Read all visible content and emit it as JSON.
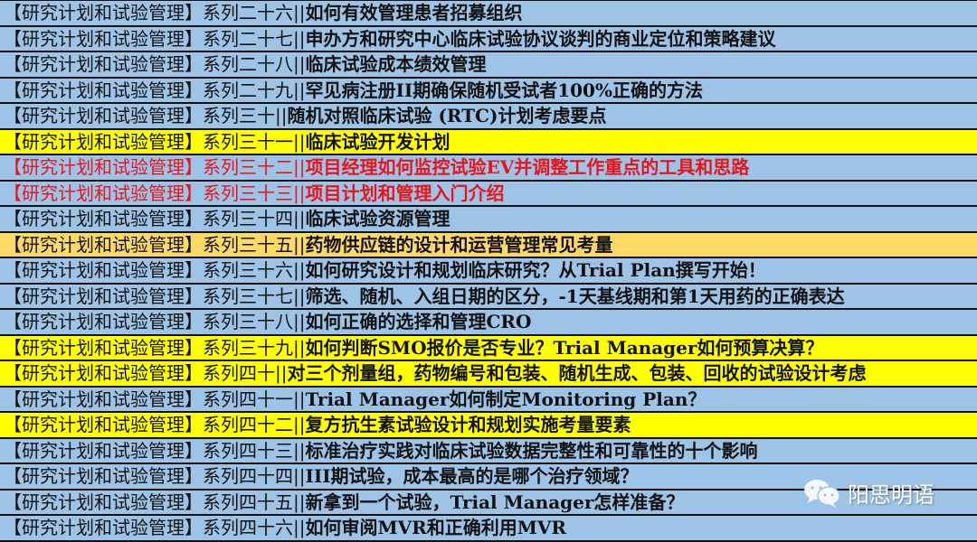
{
  "prefix": "【研究计划和试验管理】",
  "colors": {
    "blue": "#9dc3e6",
    "yellow": "#ffff00",
    "orange": "#ffd966",
    "red_text": "#e8141c"
  },
  "rows": [
    {
      "series": "系列二十六||",
      "title": "如何有效管理患者招募组织",
      "style": "blue"
    },
    {
      "series": "系列二十七||",
      "title": "申办方和研究中心临床试验协议谈判的商业定位和策略建议",
      "style": "blue"
    },
    {
      "series": "系列二十八||",
      "title": "临床试验成本绩效管理",
      "style": "blue"
    },
    {
      "series": "系列二十九||",
      "title": "罕见病注册II期确保随机受试者100%正确的方法",
      "style": "blue"
    },
    {
      "series": "系列三十||",
      "title": "随机对照临床试验 (RTC)计划考虑要点",
      "style": "blue"
    },
    {
      "series": "系列三十一||",
      "title": "临床试验开发计划",
      "style": "yellow"
    },
    {
      "series": "系列三十二||",
      "title": "项目经理如何监控试验EV并调整工作重点的工具和思路",
      "style": "blue red"
    },
    {
      "series": "系列三十三||",
      "title": "项目计划和管理入门介绍",
      "style": "blue red"
    },
    {
      "series": "系列三十四||",
      "title": "临床试验资源管理",
      "style": "blue"
    },
    {
      "series": "系列三十五||",
      "title": "药物供应链的设计和运营管理常见考量",
      "style": "orange"
    },
    {
      "series": "系列三十六||",
      "title": "如何研究设计和规划临床研究？从Trial Plan撰写开始！",
      "style": "blue"
    },
    {
      "series": "系列三十七||",
      "title": "筛选、随机、入组日期的区分，-1天基线期和第1天用药的正确表达",
      "style": "blue"
    },
    {
      "series": "系列三十八||",
      "title": "如何正确的选择和管理CRO",
      "style": "blue"
    },
    {
      "series": "系列三十九||",
      "title": "如何判断SMO报价是否专业？Trial Manager如何预算决算？",
      "style": "yellow"
    },
    {
      "series": "系列四十||",
      "title": "对三个剂量组，药物编号和包装、随机生成、包装、回收的试验设计考虑",
      "style": "yellow"
    },
    {
      "series": "系列四十一||",
      "title": "Trial Manager如何制定Monitoring Plan？",
      "style": "blue"
    },
    {
      "series": "系列四十二||",
      "title": "复方抗生素试验设计和规划实施考量要素",
      "style": "yellow"
    },
    {
      "series": "系列四十三||",
      "title": "标准治疗实践对临床试验数据完整性和可靠性的十个影响",
      "style": "blue"
    },
    {
      "series": "系列四十四||",
      "title": "III期试验，成本最高的是哪个治疗领域？",
      "style": "blue"
    },
    {
      "series": "系列四十五||",
      "title": "新拿到一个试验，Trial Manager怎样准备？",
      "style": "blue"
    },
    {
      "series": "系列四十六||",
      "title": "如何审阅MVR和正确利用MVR",
      "style": "blue"
    }
  ],
  "watermark": {
    "icon": "wechat-icon",
    "text": "阳思明语"
  }
}
